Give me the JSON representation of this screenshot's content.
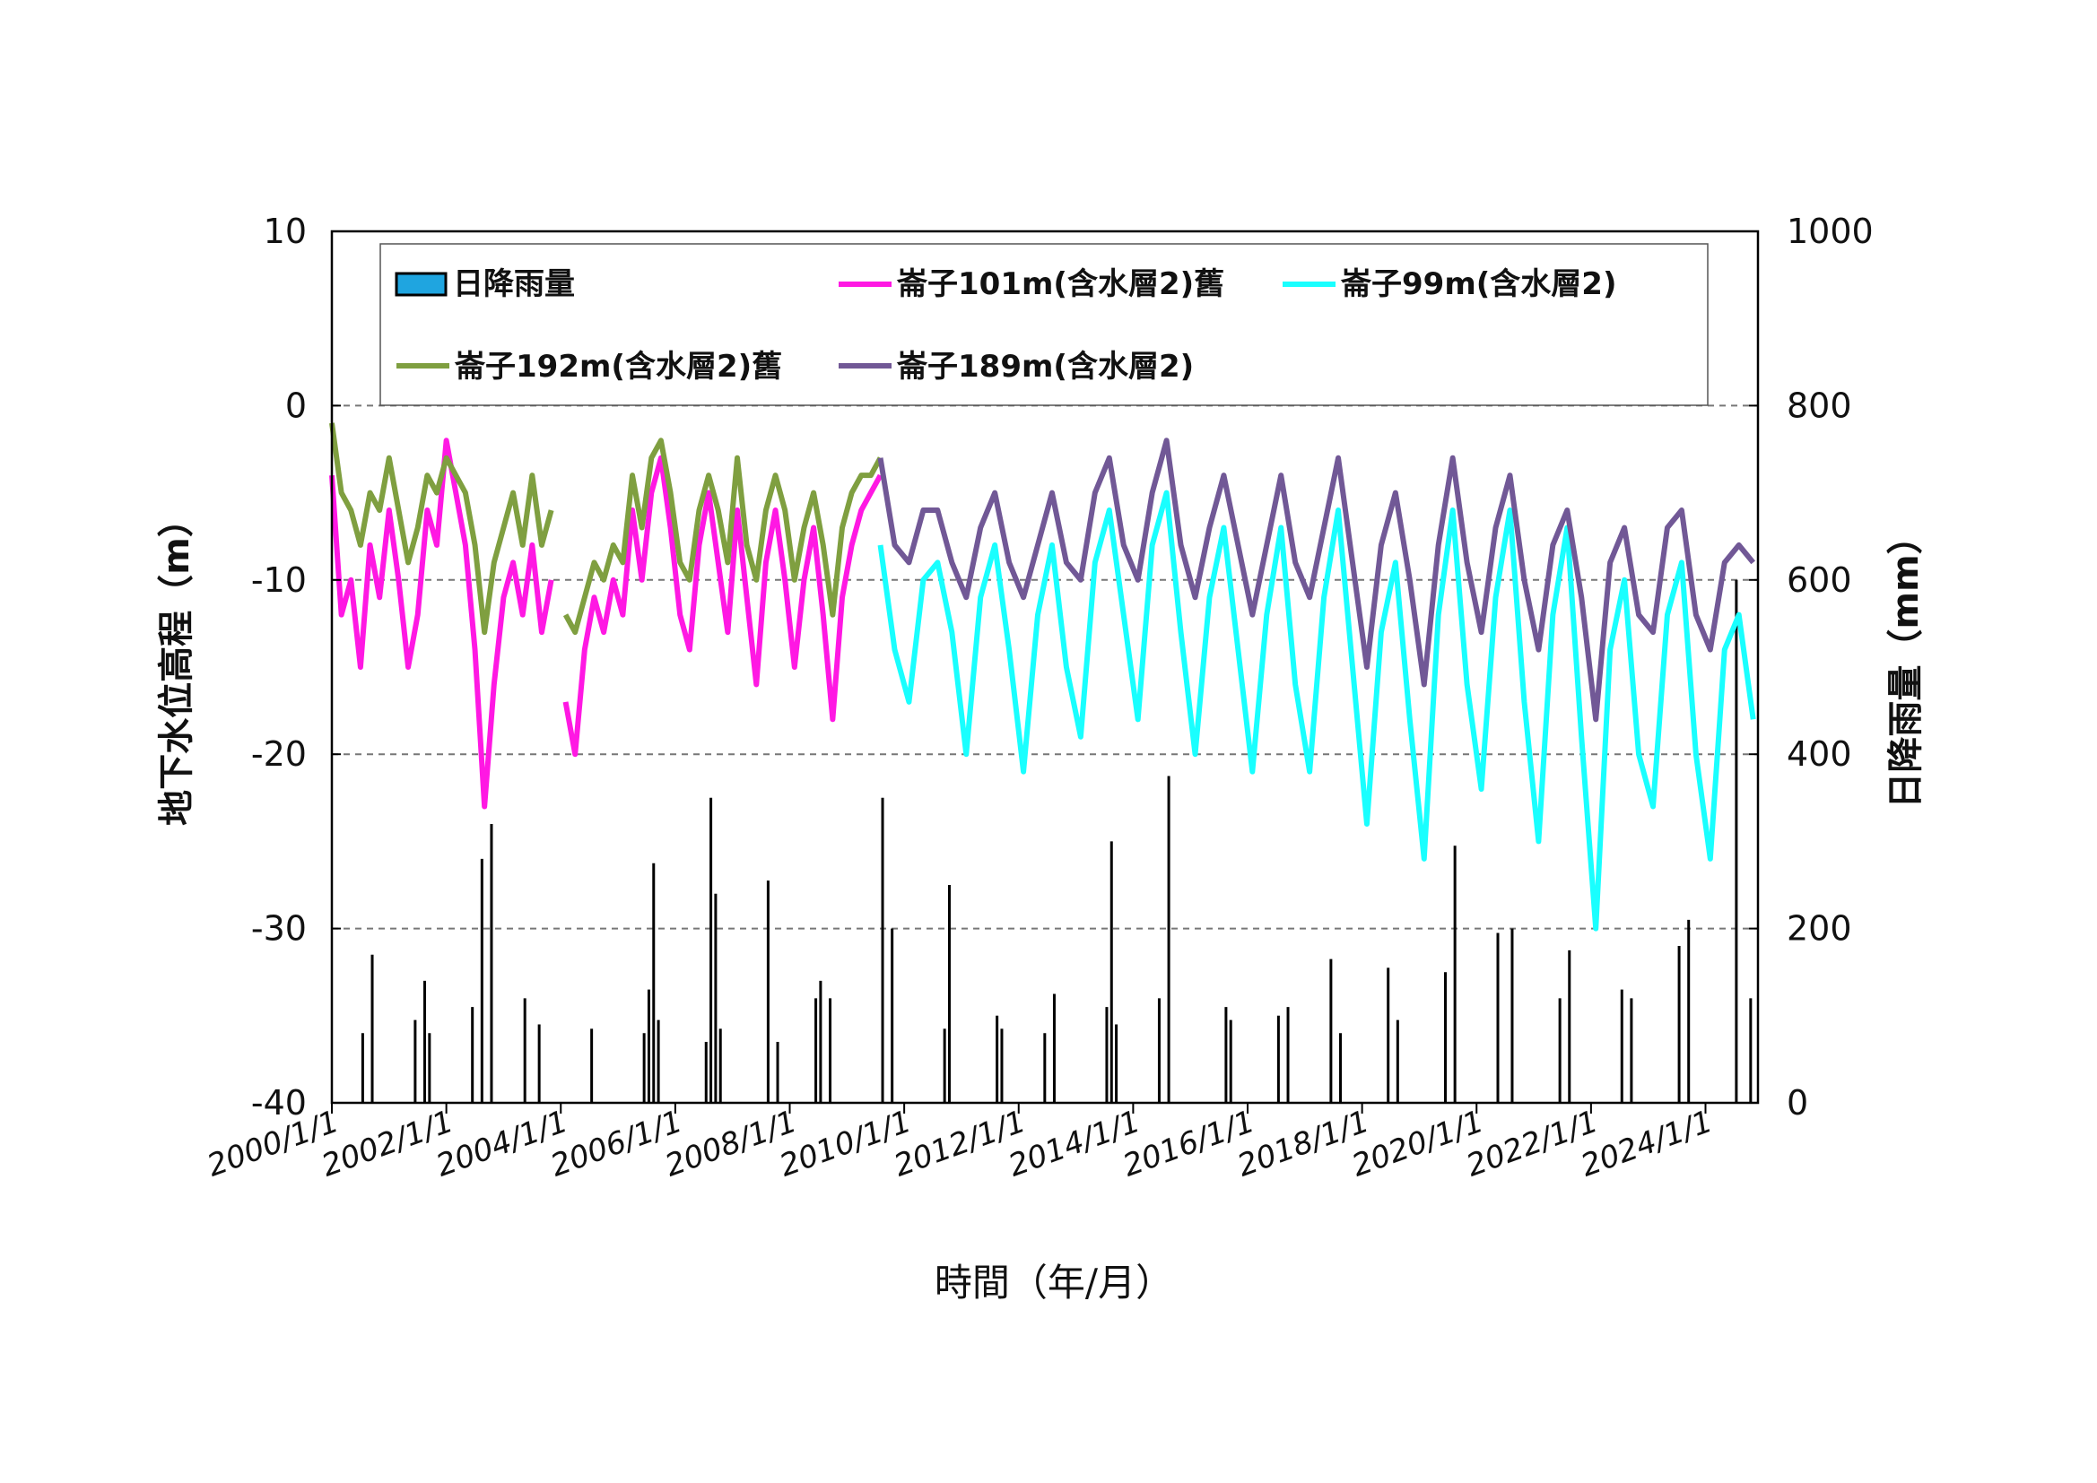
{
  "chart_data": {
    "type": "line",
    "xlabel": "時間（年/月）",
    "ylabel_left": "地下水位高程（m）",
    "ylabel_right": "日降雨量（mm）",
    "x_range": [
      "2000/1/1",
      "2024/12/1"
    ],
    "x_ticks": [
      "2000/1/1",
      "2002/1/1",
      "2004/1/1",
      "2006/1/1",
      "2008/1/1",
      "2010/1/1",
      "2012/1/1",
      "2014/1/1",
      "2016/1/1",
      "2018/1/1",
      "2020/1/1",
      "2022/1/1",
      "2024/1/1"
    ],
    "ylim_left": [
      -40,
      10
    ],
    "yticks_left": [
      "10",
      "0",
      "-10",
      "-20",
      "-30",
      "-40"
    ],
    "ylim_right": [
      0,
      1000
    ],
    "yticks_right": [
      "1000",
      "800",
      "600",
      "400",
      "200",
      "0"
    ],
    "grid": "horizontal dashed",
    "legend_position": "top",
    "series": [
      {
        "name": "日降雨量",
        "kind": "bar",
        "axis": "right",
        "color": "#000000",
        "legend_color": "#1fa5e0",
        "x": [
          "2000/7",
          "2000/9",
          "2001/6",
          "2001/8",
          "2001/9",
          "2002/6",
          "2002/8",
          "2002/10",
          "2003/5",
          "2003/8",
          "2004/7",
          "2005/6",
          "2005/7",
          "2005/8",
          "2005/9",
          "2006/7",
          "2006/8",
          "2006/9",
          "2006/10",
          "2007/8",
          "2007/10",
          "2008/6",
          "2008/7",
          "2008/9",
          "2009/8",
          "2009/10",
          "2010/9",
          "2010/10",
          "2011/8",
          "2011/9",
          "2012/6",
          "2012/8",
          "2013/7",
          "2013/8",
          "2013/9",
          "2014/6",
          "2014/8",
          "2015/8",
          "2015/9",
          "2016/7",
          "2016/9",
          "2017/6",
          "2017/8",
          "2018/6",
          "2018/8",
          "2019/6",
          "2019/8",
          "2020/5",
          "2020/8",
          "2021/6",
          "2021/8",
          "2022/7",
          "2022/9",
          "2023/7",
          "2023/9",
          "2024/7",
          "2024/10"
        ],
        "y": [
          80,
          170,
          95,
          140,
          80,
          110,
          280,
          320,
          120,
          90,
          85,
          80,
          130,
          275,
          95,
          70,
          350,
          240,
          85,
          255,
          70,
          120,
          140,
          120,
          350,
          200,
          85,
          250,
          100,
          85,
          80,
          125,
          110,
          300,
          90,
          120,
          375,
          110,
          95,
          100,
          110,
          165,
          80,
          155,
          95,
          150,
          295,
          195,
          200,
          120,
          175,
          130,
          120,
          180,
          210,
          600,
          120
        ]
      },
      {
        "name": "崙子101m(含水層2)舊",
        "kind": "line",
        "axis": "left",
        "color": "#ff18e3",
        "segments": [
          {
            "x": [
              "2000/1",
              "2000/3",
              "2000/5",
              "2000/7",
              "2000/9",
              "2000/11",
              "2001/1",
              "2001/3",
              "2001/5",
              "2001/7",
              "2001/9",
              "2001/11",
              "2002/1",
              "2002/3",
              "2002/5",
              "2002/7",
              "2002/9",
              "2002/11",
              "2003/1",
              "2003/3",
              "2003/5",
              "2003/7",
              "2003/9",
              "2003/11"
            ],
            "y": [
              -4,
              -12,
              -10,
              -15,
              -8,
              -11,
              -6,
              -10,
              -15,
              -12,
              -6,
              -8,
              -2,
              -5,
              -8,
              -14,
              -23,
              -16,
              -11,
              -9,
              -12,
              -8,
              -13,
              -10
            ]
          },
          {
            "x": [
              "2004/2",
              "2004/4",
              "2004/6",
              "2004/8",
              "2004/10",
              "2004/12",
              "2005/2",
              "2005/4",
              "2005/6",
              "2005/8",
              "2005/10",
              "2005/12",
              "2006/2",
              "2006/4",
              "2006/6",
              "2006/8",
              "2006/10",
              "2006/12",
              "2007/2",
              "2007/4",
              "2007/6",
              "2007/8",
              "2007/10",
              "2007/12",
              "2008/2",
              "2008/4",
              "2008/6",
              "2008/8",
              "2008/10",
              "2008/12",
              "2009/2",
              "2009/4",
              "2009/6",
              "2009/8"
            ],
            "y": [
              -17,
              -20,
              -14,
              -11,
              -13,
              -10,
              -12,
              -6,
              -10,
              -5,
              -3,
              -7,
              -12,
              -14,
              -8,
              -5,
              -9,
              -13,
              -6,
              -11,
              -16,
              -9,
              -6,
              -10,
              -15,
              -10,
              -7,
              -12,
              -18,
              -11,
              -8,
              -6,
              -5,
              -4
            ]
          }
        ]
      },
      {
        "name": "崙子99m(含水層2)",
        "kind": "line",
        "axis": "left",
        "color": "#19ffff",
        "x": [
          "2009/8",
          "2009/11",
          "2010/2",
          "2010/5",
          "2010/8",
          "2010/11",
          "2011/2",
          "2011/5",
          "2011/8",
          "2011/11",
          "2012/2",
          "2012/5",
          "2012/8",
          "2012/11",
          "2013/2",
          "2013/5",
          "2013/8",
          "2013/11",
          "2014/2",
          "2014/5",
          "2014/8",
          "2014/11",
          "2015/2",
          "2015/5",
          "2015/8",
          "2015/11",
          "2016/2",
          "2016/5",
          "2016/8",
          "2016/11",
          "2017/2",
          "2017/5",
          "2017/8",
          "2017/11",
          "2018/2",
          "2018/5",
          "2018/8",
          "2018/11",
          "2019/2",
          "2019/5",
          "2019/8",
          "2019/11",
          "2020/2",
          "2020/5",
          "2020/8",
          "2020/11",
          "2021/2",
          "2021/5",
          "2021/8",
          "2021/11",
          "2022/2",
          "2022/5",
          "2022/8",
          "2022/11",
          "2023/2",
          "2023/5",
          "2023/8",
          "2023/11",
          "2024/2",
          "2024/5",
          "2024/8",
          "2024/11"
        ],
        "y": [
          -8,
          -14,
          -17,
          -10,
          -9,
          -13,
          -20,
          -11,
          -8,
          -14,
          -21,
          -12,
          -8,
          -15,
          -19,
          -9,
          -6,
          -12,
          -18,
          -8,
          -5,
          -13,
          -20,
          -11,
          -7,
          -14,
          -21,
          -12,
          -7,
          -16,
          -21,
          -11,
          -6,
          -15,
          -24,
          -13,
          -9,
          -18,
          -26,
          -12,
          -6,
          -16,
          -22,
          -11,
          -6,
          -17,
          -25,
          -12,
          -7,
          -19,
          -30,
          -14,
          -10,
          -20,
          -23,
          -12,
          -9,
          -20,
          -26,
          -14,
          -12,
          -18
        ]
      },
      {
        "name": "崙子192m(含水層2)舊",
        "kind": "line",
        "axis": "left",
        "color": "#7f9f40",
        "segments": [
          {
            "x": [
              "2000/1",
              "2000/3",
              "2000/5",
              "2000/7",
              "2000/9",
              "2000/11",
              "2001/1",
              "2001/3",
              "2001/5",
              "2001/7",
              "2001/9",
              "2001/11",
              "2002/1",
              "2002/3",
              "2002/5",
              "2002/7",
              "2002/9",
              "2002/11",
              "2003/1",
              "2003/3",
              "2003/5",
              "2003/7",
              "2003/9",
              "2003/11"
            ],
            "y": [
              -1,
              -5,
              -6,
              -8,
              -5,
              -6,
              -3,
              -6,
              -9,
              -7,
              -4,
              -5,
              -3,
              -4,
              -5,
              -8,
              -13,
              -9,
              -7,
              -5,
              -8,
              -4,
              -8,
              -6
            ]
          },
          {
            "x": [
              "2004/2",
              "2004/4",
              "2004/6",
              "2004/8",
              "2004/10",
              "2004/12",
              "2005/2",
              "2005/4",
              "2005/6",
              "2005/8",
              "2005/10",
              "2005/12",
              "2006/2",
              "2006/4",
              "2006/6",
              "2006/8",
              "2006/10",
              "2006/12",
              "2007/2",
              "2007/4",
              "2007/6",
              "2007/8",
              "2007/10",
              "2007/12",
              "2008/2",
              "2008/4",
              "2008/6",
              "2008/8",
              "2008/10",
              "2008/12",
              "2009/2",
              "2009/4",
              "2009/6",
              "2009/8"
            ],
            "y": [
              -12,
              -13,
              -11,
              -9,
              -10,
              -8,
              -9,
              -4,
              -7,
              -3,
              -2,
              -5,
              -9,
              -10,
              -6,
              -4,
              -6,
              -9,
              -3,
              -8,
              -10,
              -6,
              -4,
              -6,
              -10,
              -7,
              -5,
              -8,
              -12,
              -7,
              -5,
              -4,
              -4,
              -3
            ]
          }
        ]
      },
      {
        "name": "崙子189m(含水層2)",
        "kind": "line",
        "axis": "left",
        "color": "#715896",
        "x": [
          "2009/8",
          "2009/11",
          "2010/2",
          "2010/5",
          "2010/8",
          "2010/11",
          "2011/2",
          "2011/5",
          "2011/8",
          "2011/11",
          "2012/2",
          "2012/5",
          "2012/8",
          "2012/11",
          "2013/2",
          "2013/5",
          "2013/8",
          "2013/11",
          "2014/2",
          "2014/5",
          "2014/8",
          "2014/11",
          "2015/2",
          "2015/5",
          "2015/8",
          "2015/11",
          "2016/2",
          "2016/5",
          "2016/8",
          "2016/11",
          "2017/2",
          "2017/5",
          "2017/8",
          "2017/11",
          "2018/2",
          "2018/5",
          "2018/8",
          "2018/11",
          "2019/2",
          "2019/5",
          "2019/8",
          "2019/11",
          "2020/2",
          "2020/5",
          "2020/8",
          "2020/11",
          "2021/2",
          "2021/5",
          "2021/8",
          "2021/11",
          "2022/2",
          "2022/5",
          "2022/8",
          "2022/11",
          "2023/2",
          "2023/5",
          "2023/8",
          "2023/11",
          "2024/2",
          "2024/5",
          "2024/8",
          "2024/11"
        ],
        "y": [
          -3,
          -8,
          -9,
          -6,
          -6,
          -9,
          -11,
          -7,
          -5,
          -9,
          -11,
          -8,
          -5,
          -9,
          -10,
          -5,
          -3,
          -8,
          -10,
          -5,
          -2,
          -8,
          -11,
          -7,
          -4,
          -8,
          -12,
          -8,
          -4,
          -9,
          -11,
          -7,
          -3,
          -9,
          -15,
          -8,
          -5,
          -10,
          -16,
          -8,
          -3,
          -9,
          -13,
          -7,
          -4,
          -10,
          -14,
          -8,
          -6,
          -11,
          -18,
          -9,
          -7,
          -12,
          -13,
          -7,
          -6,
          -12,
          -14,
          -9,
          -8,
          -9
        ]
      }
    ]
  }
}
